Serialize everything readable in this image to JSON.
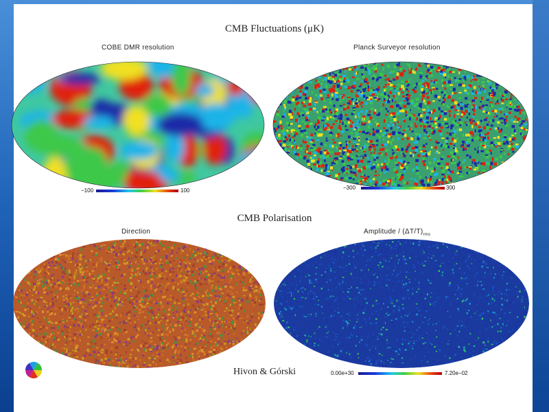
{
  "fluctuations": {
    "title": "CMB Fluctuations (μK)",
    "left_map": {
      "label": "COBE DMR resolution",
      "scale_min": "−100",
      "scale_max": "100"
    },
    "right_map": {
      "label": "Planck Surveyor resolution",
      "scale_min": "−300",
      "scale_max": "300"
    }
  },
  "polarisation": {
    "title": "CMB Polarisation",
    "left_map": {
      "label": "Direction"
    },
    "right_map": {
      "label": "Amplitude / (ΔT/T)",
      "label_sub": "rms",
      "scale_min": "0.00e+30",
      "scale_max": "7.20e−02"
    }
  },
  "credit": "Hivon & Górski",
  "colors": {
    "cold": "#1a2aa8",
    "cool": "#1fb4e8",
    "mid": "#3cc84a",
    "warm": "#f0e020",
    "hot": "#e02010",
    "direction_base": "#b85a2a",
    "amplitude_base": "#1a3aa0"
  }
}
